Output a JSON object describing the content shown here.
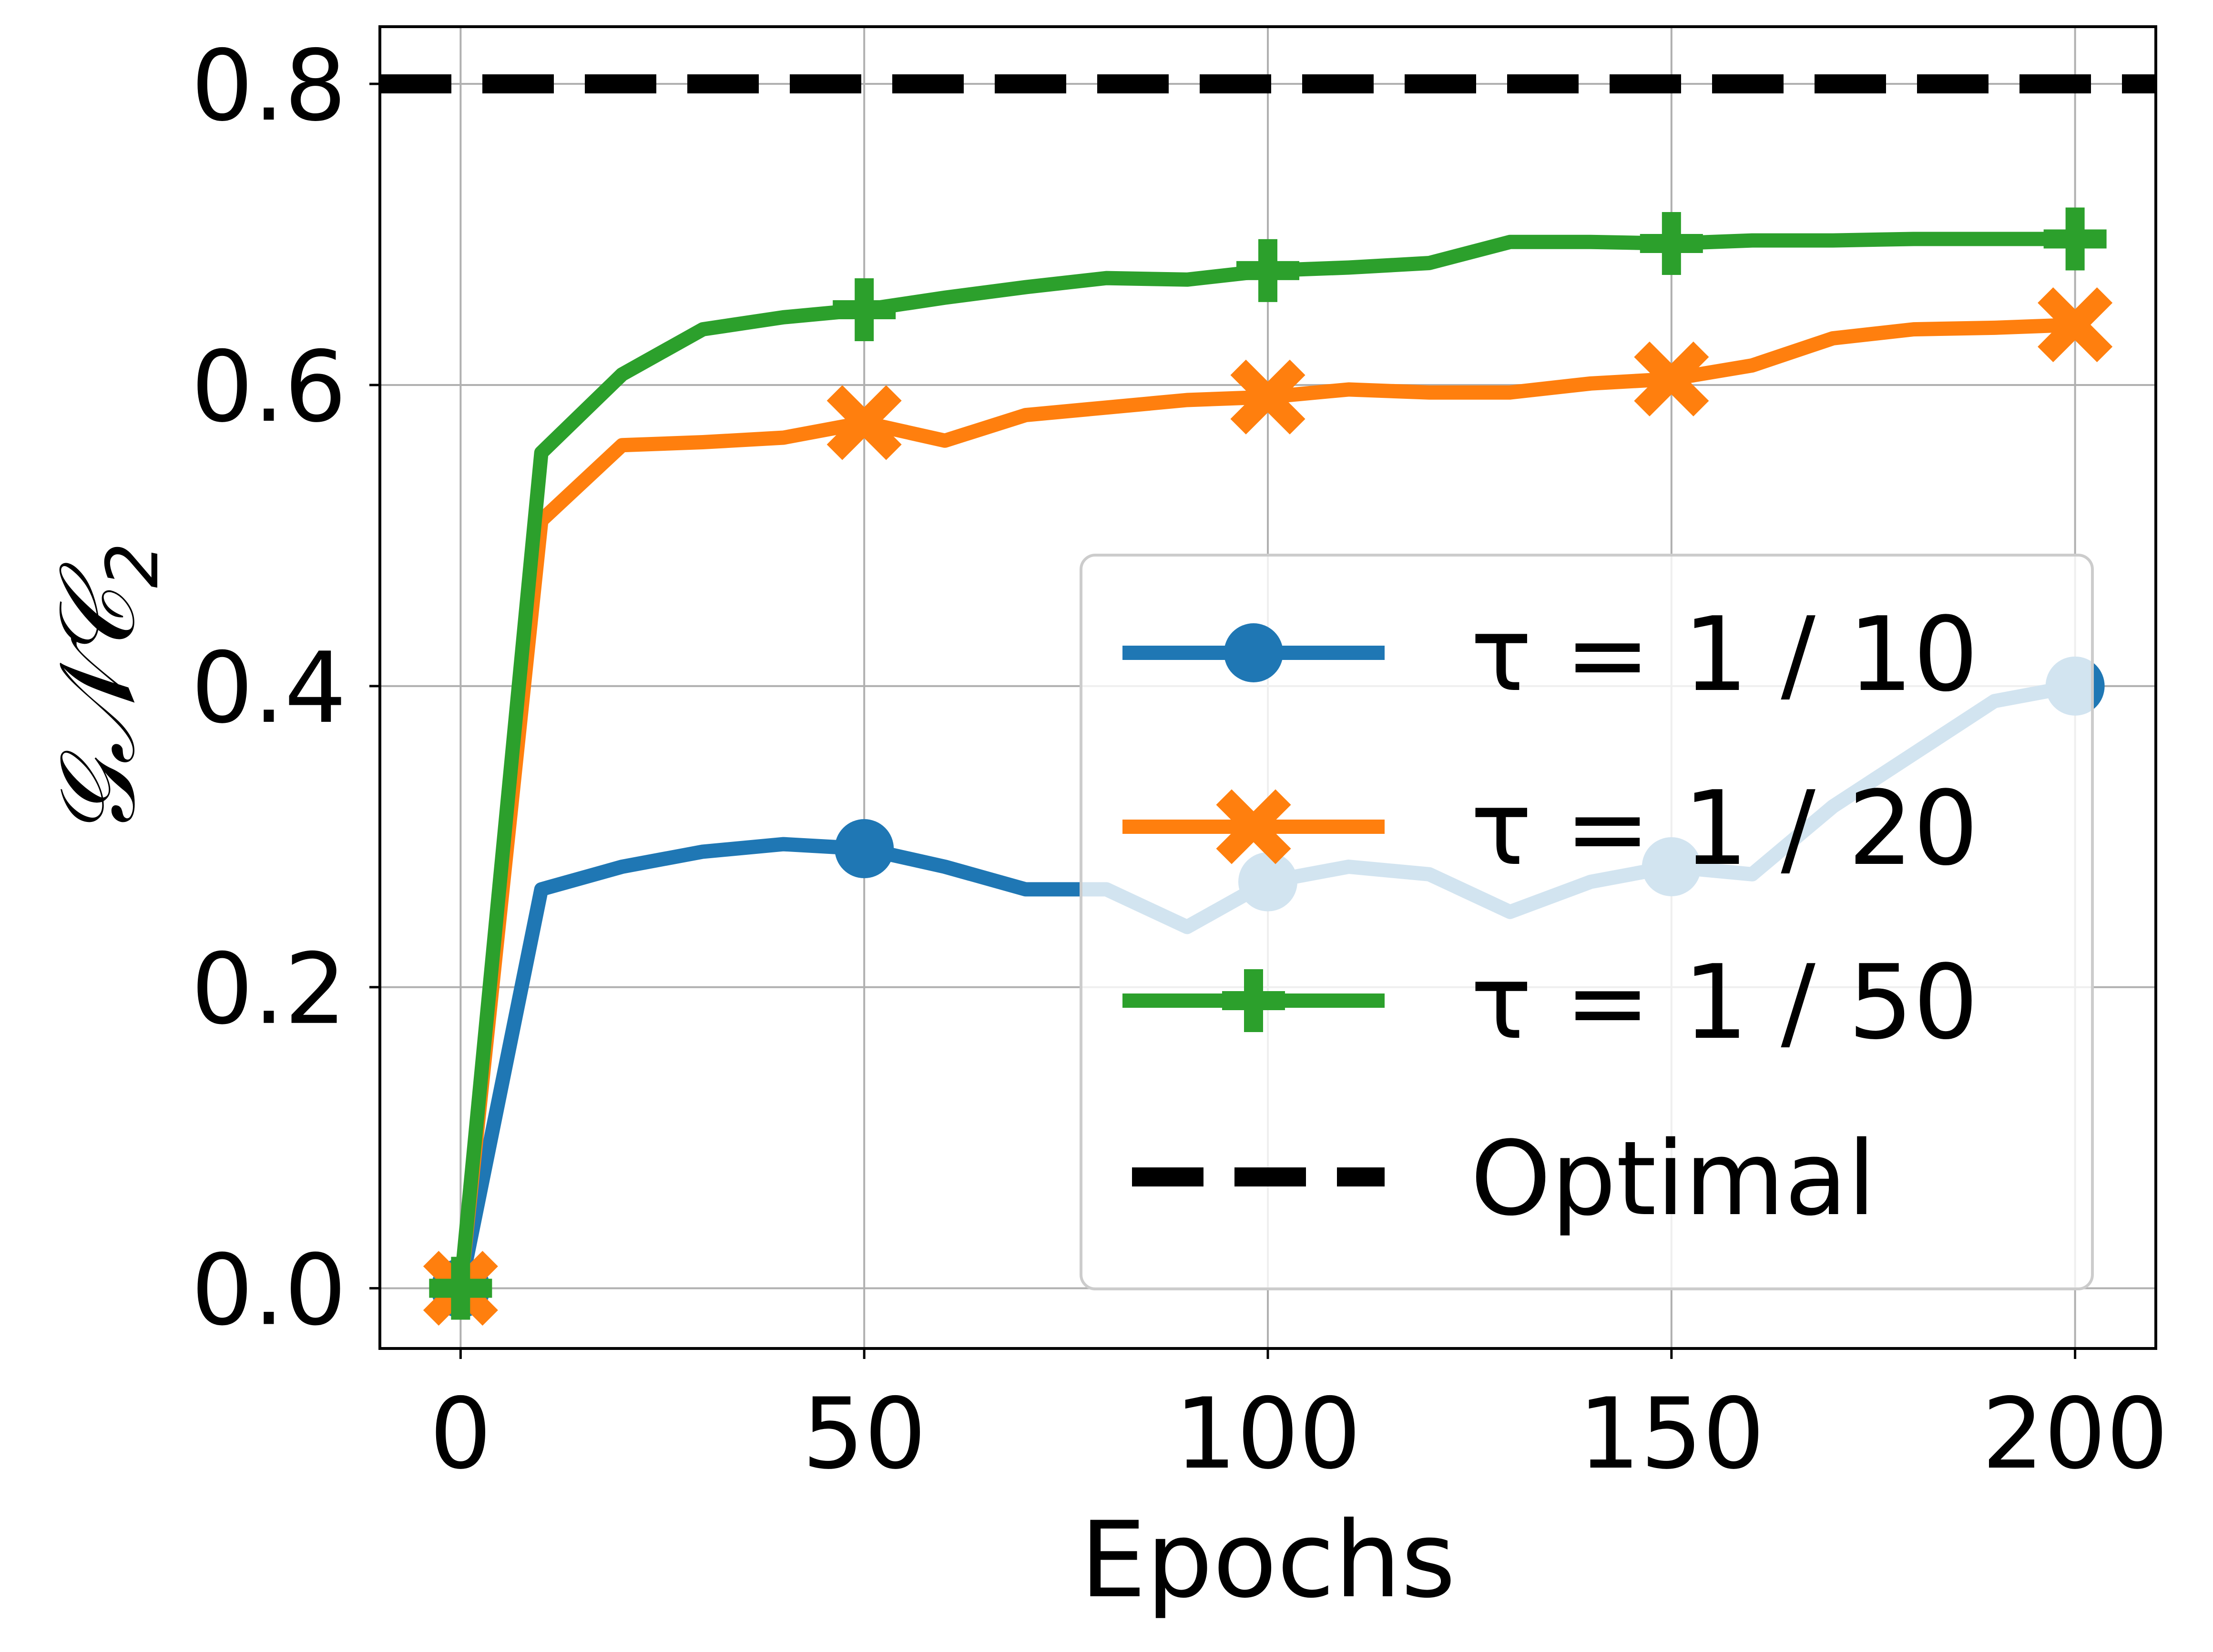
{
  "chart_data": {
    "type": "line",
    "title": "",
    "xlabel": "Epochs",
    "ylabel": "𝒢𝒩𝒞",
    "ylabel_subscript": "2",
    "xlim": [
      -10,
      210
    ],
    "ylim": [
      -0.04,
      0.838
    ],
    "xticks": [
      0,
      50,
      100,
      150,
      200
    ],
    "xtick_labels": [
      "0",
      "50",
      "100",
      "150",
      "200"
    ],
    "yticks": [
      0.0,
      0.2,
      0.4,
      0.6,
      0.8
    ],
    "ytick_labels": [
      "0.0",
      "0.2",
      "0.4",
      "0.6",
      "0.8"
    ],
    "grid": true,
    "legend_position": "center-right",
    "x": [
      0,
      10,
      20,
      30,
      40,
      50,
      60,
      70,
      80,
      90,
      100,
      110,
      120,
      130,
      140,
      150,
      160,
      170,
      180,
      190,
      200
    ],
    "marker_x": [
      0,
      50,
      100,
      150,
      200
    ],
    "series": [
      {
        "name": "τ = 1 / 10",
        "color": "#1f77b4",
        "marker": "circle",
        "values": [
          0.0,
          0.265,
          0.28,
          0.29,
          0.295,
          0.292,
          0.28,
          0.265,
          0.265,
          0.24,
          0.27,
          0.28,
          0.275,
          0.25,
          0.27,
          0.28,
          0.275,
          0.32,
          0.355,
          0.39,
          0.4
        ]
      },
      {
        "name": "τ = 1 / 20",
        "color": "#ff7f0e",
        "marker": "x",
        "values": [
          0.0,
          0.51,
          0.56,
          0.562,
          0.565,
          0.575,
          0.563,
          0.58,
          0.585,
          0.59,
          0.592,
          0.597,
          0.595,
          0.595,
          0.601,
          0.604,
          0.613,
          0.631,
          0.637,
          0.638,
          0.64
        ]
      },
      {
        "name": "τ = 1 / 50",
        "color": "#2ca02c",
        "marker": "plus",
        "values": [
          0.0,
          0.555,
          0.607,
          0.637,
          0.645,
          0.65,
          0.658,
          0.665,
          0.671,
          0.67,
          0.676,
          0.678,
          0.681,
          0.695,
          0.695,
          0.694,
          0.696,
          0.696,
          0.697,
          0.697,
          0.697
        ]
      },
      {
        "name": "Optimal",
        "color": "#000000",
        "marker": "none",
        "dashed": true,
        "constant": 0.8
      }
    ]
  }
}
